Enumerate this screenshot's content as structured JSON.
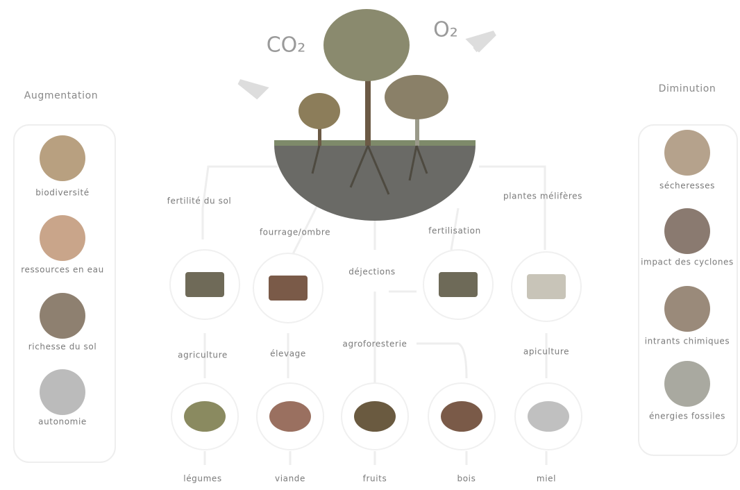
{
  "gases": {
    "co2": "CO₂",
    "o2": "O₂"
  },
  "left_panel": {
    "title": "Augmentation",
    "items": [
      "biodiversité",
      "ressources en eau",
      "richesse du sol",
      "autonomie"
    ]
  },
  "right_panel": {
    "title": "Diminution",
    "items": [
      "sécheresses",
      "impact des cyclones",
      "intrants chimiques",
      "énergies fossiles"
    ]
  },
  "flows": [
    "fertilité du sol",
    "fourrage/ombre",
    "déjections",
    "fertilisation",
    "plantes mélifères"
  ],
  "activities": [
    "agriculture",
    "élevage",
    "agroforesterie",
    "apiculture"
  ],
  "products": [
    "légumes",
    "viande",
    "fruits",
    "bois",
    "miel"
  ]
}
